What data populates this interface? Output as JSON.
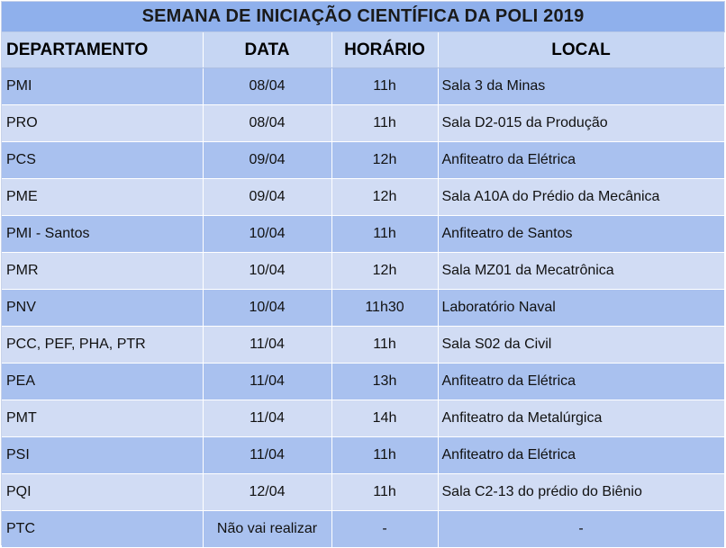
{
  "title": "SEMANA DE INICIAÇÃO CIENTÍFICA DA POLI 2019",
  "headers": {
    "departamento": "DEPARTAMENTO",
    "data": "DATA",
    "horario": "HORÁRIO",
    "local": "LOCAL"
  },
  "rows": [
    {
      "departamento": "PMI",
      "data": "08/04",
      "horario": "11h",
      "local": "Sala 3 da Minas"
    },
    {
      "departamento": "PRO",
      "data": "08/04",
      "horario": "11h",
      "local": "Sala D2-015 da Produção"
    },
    {
      "departamento": "PCS",
      "data": "09/04",
      "horario": "12h",
      "local": "Anfiteatro da Elétrica"
    },
    {
      "departamento": "PME",
      "data": "09/04",
      "horario": "12h",
      "local": "Sala A10A do Prédio da Mecânica"
    },
    {
      "departamento": "PMI - Santos",
      "data": "10/04",
      "horario": "11h",
      "local": "Anfiteatro de Santos"
    },
    {
      "departamento": "PMR",
      "data": "10/04",
      "horario": "12h",
      "local": "Sala MZ01 da Mecatrônica"
    },
    {
      "departamento": "PNV",
      "data": "10/04",
      "horario": "11h30",
      "local": "Laboratório Naval"
    },
    {
      "departamento": "PCC, PEF, PHA, PTR",
      "data": "11/04",
      "horario": "11h",
      "local": "Sala S02 da Civil"
    },
    {
      "departamento": "PEA",
      "data": "11/04",
      "horario": "13h",
      "local": "Anfiteatro da Elétrica"
    },
    {
      "departamento": "PMT",
      "data": "11/04",
      "horario": "14h",
      "local": "Anfiteatro da Metalúrgica"
    },
    {
      "departamento": "PSI",
      "data": "11/04",
      "horario": "11h",
      "local": "Anfiteatro da Elétrica"
    },
    {
      "departamento": "PQI",
      "data": "12/04",
      "horario": "11h",
      "local": "Sala C2-13 do prédio do Biênio"
    },
    {
      "departamento": "PTC",
      "data": "Não vai realizar",
      "horario": "-",
      "local": "-"
    }
  ],
  "colors": {
    "title_bg": "#8fb0ec",
    "header_bg": "#c6d6f3",
    "row_dark": "#a9c1ef",
    "row_light": "#d1dcf4"
  }
}
